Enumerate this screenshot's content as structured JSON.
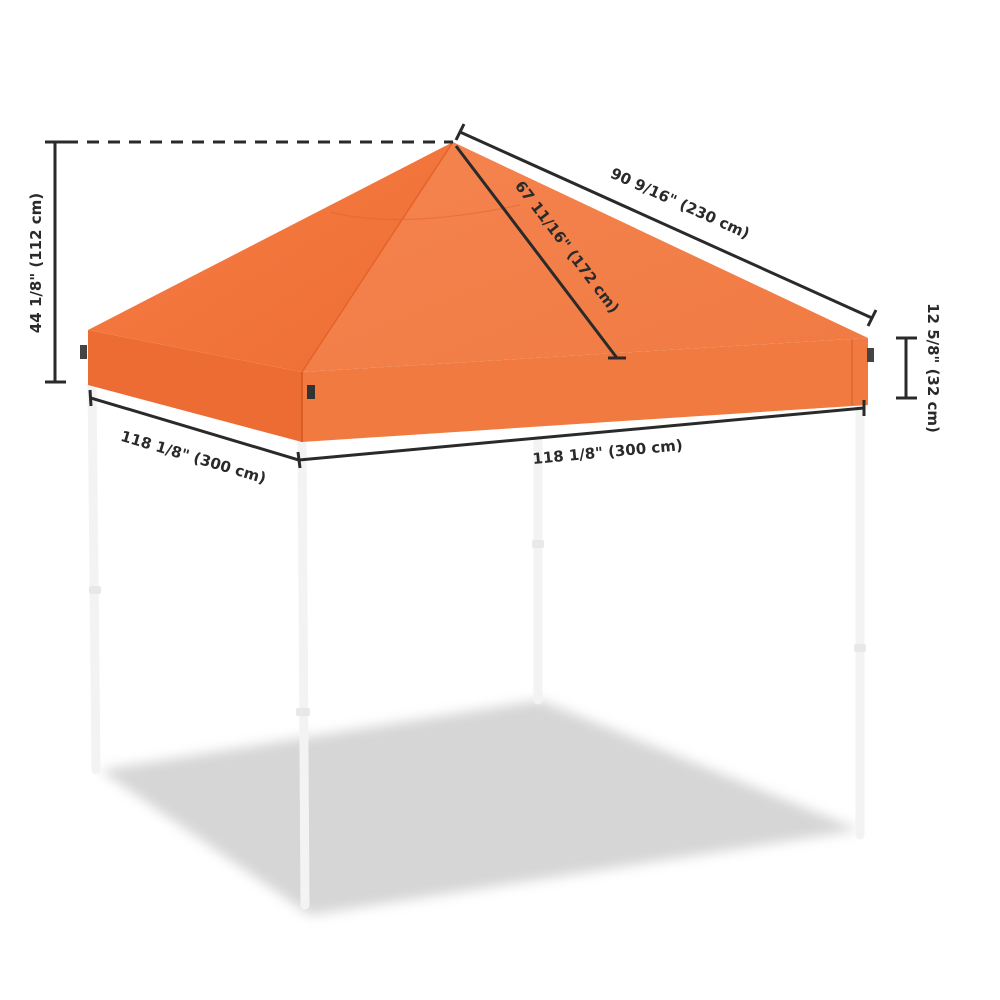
{
  "dimensions": {
    "total_height": "44 1/8\" (112 cm)",
    "ridge_length": "90 9/16\" (230 cm)",
    "diagonal": "67 11/16\" (172 cm)",
    "valance_height": "12 5/8\" (32 cm)",
    "left_width": "118 1/8\" (300 cm)",
    "front_width": "118 1/8\" (300 cm)"
  },
  "colors": {
    "canopy": "#f27a43",
    "canopy_shade": "#e86a33",
    "valance": "#ee7038",
    "frame": "#f6f6f6",
    "shadow": "#cfcfcf",
    "dim_line": "#2a2a2a"
  }
}
